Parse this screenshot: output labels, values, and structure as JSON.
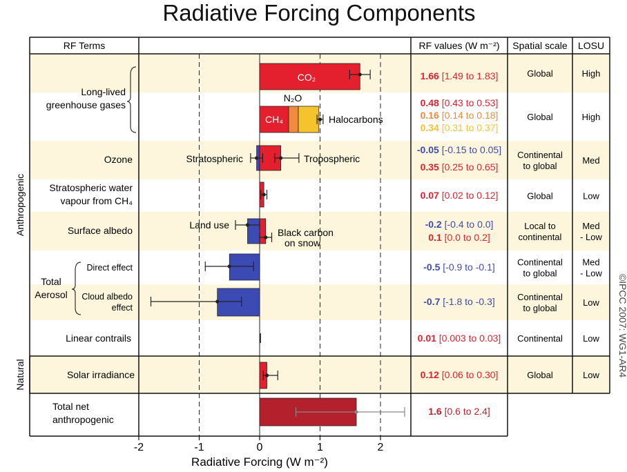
{
  "chart_data": {
    "type": "bar",
    "orientation": "horizontal",
    "title": "Radiative Forcing Components",
    "xlabel": "Radiative Forcing (W m⁻²)",
    "xlim": [
      -2,
      2.5
    ],
    "xticks": [
      "-2",
      "-1",
      "0",
      "1",
      "2"
    ],
    "grid": "dashed vertical lines at -1, 1 and 2",
    "columns": {
      "rf_terms": "RF Terms",
      "rf_values": "RF values (W m⁻²)",
      "spatial_scale": "Spatial scale",
      "losu": "LOSU"
    },
    "groups": {
      "anthropogenic": "Anthropogenic",
      "natural": "Natural",
      "long_lived": "Long-lived greenhouse gases",
      "total_aerosol": "Total Aerosol"
    },
    "rows": [
      {
        "term": "",
        "spatial_scale": "Global",
        "losu": "High",
        "bars": [
          {
            "label": "CO₂",
            "value": 1.66,
            "low": 1.49,
            "high": 1.83,
            "color": "#e4202e",
            "value_text": "1.66",
            "range_text": "[1.49 to 1.83]",
            "text_color": "#e4202e"
          }
        ]
      },
      {
        "term": "",
        "spatial_scale": "Global",
        "losu": "High",
        "bars": [
          {
            "label": "CH₄",
            "value": 0.48,
            "low": 0.43,
            "high": 0.53,
            "color": "#e4202e",
            "value_text": "0.48",
            "range_text": "[0.43 to 0.53]",
            "text_color": "#e4202e"
          },
          {
            "label": "N₂O",
            "value": 0.16,
            "low": 0.14,
            "high": 0.18,
            "color": "#f08a3c",
            "value_text": "0.16",
            "range_text": "[0.14 to 0.18]",
            "text_color": "#f08a3c"
          },
          {
            "label": "Halocarbons",
            "value": 0.34,
            "low": 0.31,
            "high": 0.37,
            "color": "#f5c42c",
            "value_text": "0.34",
            "range_text": "[0.31 to 0.37]",
            "text_color": "#f5c42c"
          }
        ]
      },
      {
        "term": "Ozone",
        "spatial_scale": "Continental to global",
        "losu": "Med",
        "bars": [
          {
            "label": "Stratospheric",
            "value": -0.05,
            "low": -0.15,
            "high": 0.05,
            "color": "#3c4bb4",
            "value_text": "-0.05",
            "range_text": "[-0.15 to 0.05]",
            "text_color": "#3c4bb4"
          },
          {
            "label": "Tropospheric",
            "value": 0.35,
            "low": 0.25,
            "high": 0.65,
            "color": "#e4202e",
            "value_text": "0.35",
            "range_text": "[0.25 to 0.65]",
            "text_color": "#e4202e"
          }
        ]
      },
      {
        "term": "Stratospheric water vapour from CH₄",
        "spatial_scale": "Global",
        "losu": "Low",
        "bars": [
          {
            "label": "",
            "value": 0.07,
            "low": 0.02,
            "high": 0.12,
            "color": "#e4202e",
            "value_text": "0.07",
            "range_text": "[0.02 to 0.12]",
            "text_color": "#e4202e"
          }
        ]
      },
      {
        "term": "Surface albedo",
        "spatial_scale": "Local to continental",
        "losu": "Med - Low",
        "bars": [
          {
            "label": "Land use",
            "value": -0.2,
            "low": -0.4,
            "high": 0.0,
            "color": "#3c4bb4",
            "value_text": "-0.2",
            "range_text": "[-0.4 to 0.0]",
            "text_color": "#3c4bb4"
          },
          {
            "label": "Black carbon on snow",
            "value": 0.1,
            "low": 0.0,
            "high": 0.2,
            "color": "#e4202e",
            "value_text": "0.1",
            "range_text": "[0.0 to 0.2]",
            "text_color": "#e4202e"
          }
        ]
      },
      {
        "term": "Direct effect",
        "spatial_scale": "Continental to global",
        "losu": "Med - Low",
        "bars": [
          {
            "label": "",
            "value": -0.5,
            "low": -0.9,
            "high": -0.1,
            "color": "#3c4bb4",
            "value_text": "-0.5",
            "range_text": "[-0.9 to -0.1]",
            "text_color": "#3c4bb4"
          }
        ]
      },
      {
        "term": "Cloud albedo effect",
        "spatial_scale": "Continental to global",
        "losu": "Low",
        "bars": [
          {
            "label": "",
            "value": -0.7,
            "low": -1.8,
            "high": -0.3,
            "color": "#3c4bb4",
            "value_text": "-0.7",
            "range_text": "[-1.8 to -0.3]",
            "text_color": "#3c4bb4"
          }
        ]
      },
      {
        "term": "Linear contrails",
        "spatial_scale": "Continental",
        "losu": "Low",
        "bars": [
          {
            "label": "",
            "value": 0.01,
            "low": 0.003,
            "high": 0.03,
            "color": "#e4202e",
            "value_text": "0.01",
            "range_text": "[0.003 to 0.03]",
            "text_color": "#e4202e"
          }
        ]
      },
      {
        "term": "Solar irradiance",
        "spatial_scale": "Global",
        "losu": "Low",
        "bars": [
          {
            "label": "",
            "value": 0.12,
            "low": 0.06,
            "high": 0.3,
            "color": "#e4202e",
            "value_text": "0.12",
            "range_text": "[0.06 to 0.30]",
            "text_color": "#e4202e"
          }
        ]
      },
      {
        "term": "Total net anthropogenic",
        "spatial_scale": "",
        "losu": "",
        "bars": [
          {
            "label": "",
            "value": 1.6,
            "low": 0.6,
            "high": 2.4,
            "color": "#b5202d",
            "value_text": "1.6",
            "range_text": "[0.6 to 2.4]",
            "text_color": "#c0202a"
          }
        ]
      }
    ],
    "copyright": "©IPCC 2007: WG1-AR4"
  }
}
